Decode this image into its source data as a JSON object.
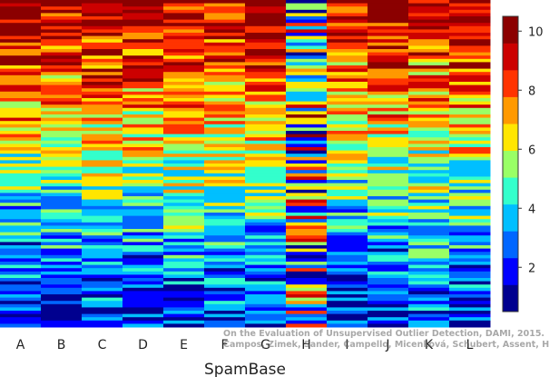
{
  "chart_data": {
    "type": "heatmap",
    "title": "",
    "xlabel": "SpamBase",
    "ylabel": "",
    "categories": [
      "A",
      "B",
      "C",
      "D",
      "E",
      "F",
      "G",
      "H",
      "I",
      "J",
      "K",
      "L"
    ],
    "color_scale": {
      "min": 0.5,
      "max": 10.5,
      "ticks": [
        2,
        4,
        6,
        8,
        10
      ],
      "colors": [
        "#00008f",
        "#0000ff",
        "#0066ff",
        "#00bfff",
        "#33ffcc",
        "#99ff66",
        "#ffe600",
        "#ff9900",
        "#ff3300",
        "#cc0000",
        "#8b0000"
      ]
    },
    "rows_per_column": 100,
    "column_profiles": [
      {
        "top": 9.9,
        "bottom": 1.2
      },
      {
        "top": 9.8,
        "bottom": 1.0
      },
      {
        "top": 9.6,
        "bottom": 1.8
      },
      {
        "top": 9.7,
        "bottom": 1.6
      },
      {
        "top": 9.5,
        "bottom": 1.9
      },
      {
        "top": 9.4,
        "bottom": 1.7
      },
      {
        "top": 9.9,
        "bottom": 1.5
      },
      {
        "top": 6.0,
        "bottom": 6.5
      },
      {
        "top": 9.3,
        "bottom": 1.4
      },
      {
        "top": 9.6,
        "bottom": 1.6
      },
      {
        "top": 9.2,
        "bottom": 2.2
      },
      {
        "top": 9.7,
        "bottom": 1.5
      }
    ]
  },
  "watermark": {
    "line1": "On the Evaluation of Unsupervised Outlier Detection, DAMI, 2015.",
    "line2": "Campos, Zimek, Sander, Campello, Micenková, Schubert, Assent, Houle"
  }
}
